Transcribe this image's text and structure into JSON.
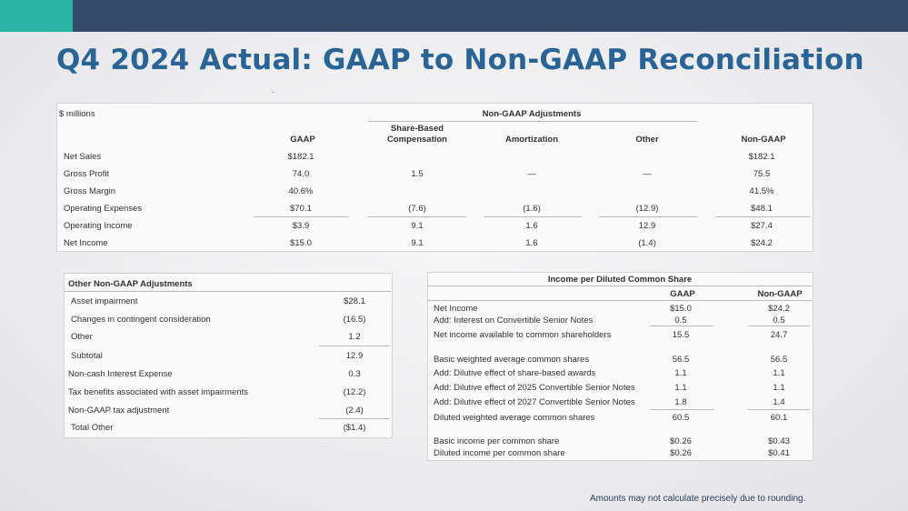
{
  "title": "Q4 2024 Actual: GAAP to Non-GAAP Reconciliation",
  "main_table": {
    "units": "$ millions",
    "group_header": "Non-GAAP Adjustments",
    "columns": [
      "GAAP",
      "Share-Based",
      "Compensation",
      "Amortization",
      "Other",
      "Non-GAAP"
    ],
    "rows": [
      {
        "label": "Net Sales",
        "gaap": "$182.1",
        "sbc": "",
        "amort": "",
        "other": "",
        "nongaap": "$182.1"
      },
      {
        "label": "Gross Profit",
        "gaap": "74.0",
        "sbc": "1.5",
        "amort": "—",
        "other": "—",
        "nongaap": "75.5"
      },
      {
        "label": "Gross Margin",
        "gaap": "40.6%",
        "sbc": "",
        "amort": "",
        "other": "",
        "nongaap": "41.5%"
      },
      {
        "label": "Operating Expenses",
        "gaap": "$70.1",
        "sbc": "(7.6)",
        "amort": "(1.6)",
        "other": "(12.9)",
        "nongaap": "$48.1"
      },
      {
        "label": "Operating Income",
        "gaap": "$3.9",
        "sbc": "9.1",
        "amort": "1.6",
        "other": "12.9",
        "nongaap": "$27.4"
      },
      {
        "label": "Net Income",
        "gaap": "$15.0",
        "sbc": "9.1",
        "amort": "1.6",
        "other": "(1.4)",
        "nongaap": "$24.2"
      }
    ]
  },
  "other_adjustments": {
    "header": "Other Non-GAAP Adjustments",
    "rows": [
      {
        "label": "Asset impairment",
        "value": "$28.1"
      },
      {
        "label": "Changes in contingent consideration",
        "value": "(16.5)"
      },
      {
        "label": "Other",
        "value": "1.2"
      },
      {
        "label": "Subtotal",
        "value": "12.9"
      },
      {
        "label": "Non-cash Interest Expense",
        "value": "0.3"
      },
      {
        "label": "Tax benefits associated with asset impairments",
        "value": "(12.2)"
      },
      {
        "label": "Non-GAAP tax adjustment",
        "value": "(2.4)"
      },
      {
        "label": "Total Other",
        "value": "($1.4)"
      }
    ]
  },
  "eps_table": {
    "header": "Income per Diluted Common Share",
    "columns": [
      "GAAP",
      "Non-GAAP"
    ],
    "rows": [
      {
        "label": "Net Income",
        "gaap": "$15.0",
        "nongaap": "$24.2"
      },
      {
        "label": "Add: Interest on Convertible Senior Notes",
        "gaap": "0.5",
        "nongaap": "0.5"
      },
      {
        "label": "Net income available to common shareholders",
        "gaap": "15.5",
        "nongaap": "24.7"
      },
      {
        "label": "Basic weighted average common shares",
        "gaap": "56.5",
        "nongaap": "56.5"
      },
      {
        "label": "Add: Dilutive effect of share-based awards",
        "gaap": "1.1",
        "nongaap": "1.1"
      },
      {
        "label": "Add: Dilutive effect of 2025 Convertible Senior Notes",
        "gaap": "1.1",
        "nongaap": "1.1"
      },
      {
        "label": "Add: Dilutive effect of 2027 Convertible Senior Notes",
        "gaap": "1.8",
        "nongaap": "1.4"
      },
      {
        "label": "Diluted weighted average common shares",
        "gaap": "60.5",
        "nongaap": "60.1"
      },
      {
        "label": "Basic income per common share",
        "gaap": "$0.26",
        "nongaap": "$0.43"
      },
      {
        "label": "Diluted income per common share",
        "gaap": "$0.26",
        "nongaap": "$0.41"
      }
    ]
  },
  "footnote": "Amounts may not calculate precisely due to rounding."
}
